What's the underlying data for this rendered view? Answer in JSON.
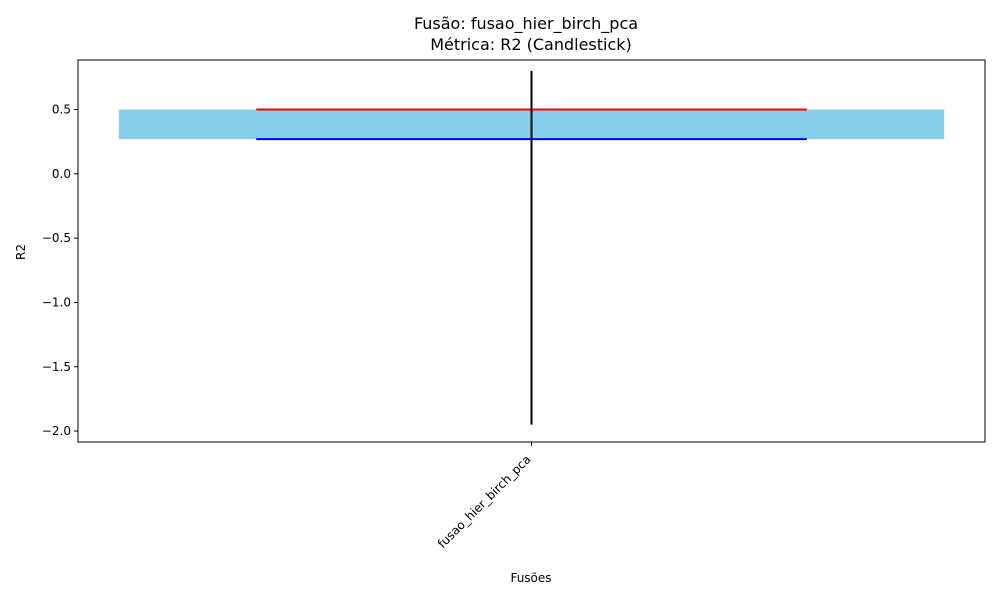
{
  "chart_data": {
    "type": "candlestick",
    "title": "Fusão: fusao_hier_birch_pca",
    "subtitle": "Métrica: R2 (Candlestick)",
    "xlabel": "Fusões",
    "ylabel": "R2",
    "categories": [
      "fusao_hier_birch_pca"
    ],
    "ylim": [
      -2.085,
      0.885
    ],
    "yticks": [
      -2.0,
      -1.5,
      -1.0,
      -0.5,
      0.0,
      0.5
    ],
    "ytick_labels": [
      "−2.0",
      "−1.5",
      "−1.0",
      "−0.5",
      "0.0",
      "0.5"
    ],
    "candles": [
      {
        "category": "fusao_hier_birch_pca",
        "open": 0.27,
        "close": 0.5,
        "high": 0.8,
        "low": -1.95
      }
    ],
    "colors": {
      "body": "#87ceeb",
      "upper_line": "#ff0000",
      "lower_line": "#0000ff",
      "wick": "#000000"
    },
    "grid": false
  }
}
